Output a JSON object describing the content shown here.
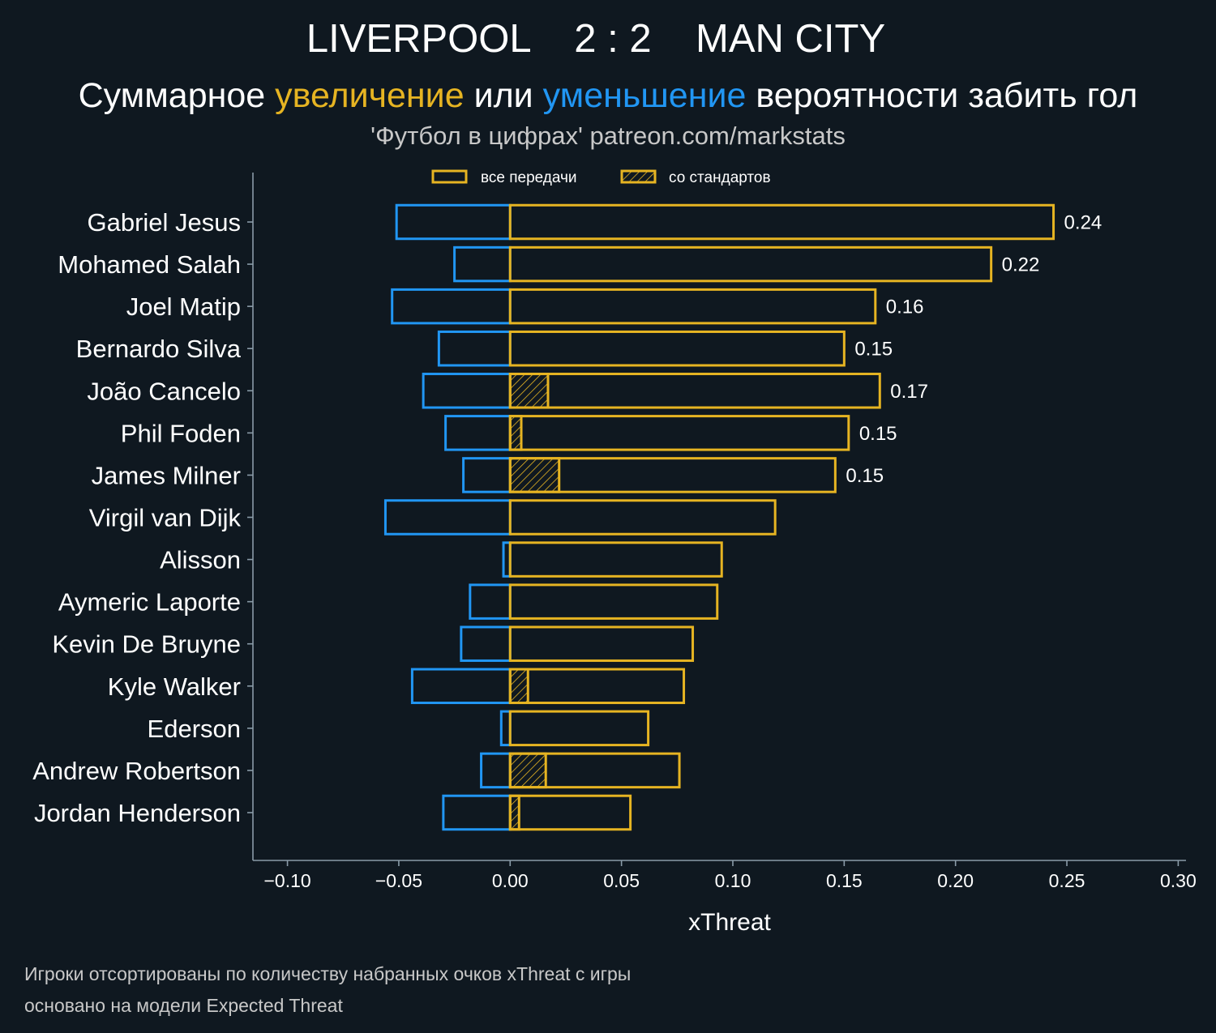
{
  "colors": {
    "background": "#0f1820",
    "text": "#ffffff",
    "muted_text": "#c8c8c8",
    "axis": "#8a9ba8",
    "increase": "#e6b422",
    "decrease": "#2196f3"
  },
  "chart_data": {
    "type": "bar",
    "orientation": "horizontal",
    "title": "LIVERPOOL    2 : 2    MAN CITY",
    "subtitle": [
      {
        "text": "Суммарное "
      },
      {
        "text": "увеличение",
        "color": "#e6b422"
      },
      {
        "text": " или "
      },
      {
        "text": "уменьшение",
        "color": "#2196f3"
      },
      {
        "text": " вероятности забить гол"
      }
    ],
    "credit": "'Футбол в цифрах' patreon.com/markstats",
    "xlabel": "xThreat",
    "xlim": [
      -0.1155,
      0.3035
    ],
    "xticks": [
      -0.1,
      -0.05,
      0.0,
      0.05,
      0.1,
      0.15,
      0.2,
      0.25,
      0.3
    ],
    "xtick_labels": [
      "−0.10",
      "−0.05",
      "0.00",
      "0.05",
      "0.10",
      "0.15",
      "0.20",
      "0.25",
      "0.30"
    ],
    "grid": false,
    "legend": {
      "placement": "top-center",
      "entries": [
        {
          "label": "все передачи"
        },
        {
          "label": "со стандартов"
        }
      ]
    },
    "categories": [
      "Gabriel Jesus",
      "Mohamed Salah",
      "Joel Matip",
      "Bernardo Silva",
      "João Cancelo",
      "Phil Foden",
      "James Milner",
      "Virgil van Dijk",
      "Alisson",
      "Aymeric Laporte",
      "Kevin De Bruyne",
      "Kyle Walker",
      "Ederson",
      "Andrew Robertson",
      "Jordan Henderson"
    ],
    "series": [
      {
        "color": "#2196f3",
        "values": [
          -0.051,
          -0.025,
          -0.053,
          -0.032,
          -0.039,
          -0.029,
          -0.021,
          -0.056,
          -0.003,
          -0.018,
          -0.022,
          -0.044,
          -0.004,
          -0.013,
          -0.03
        ]
      },
      {
        "name": "все передачи",
        "color": "#e6b422",
        "values": [
          0.244,
          0.216,
          0.164,
          0.15,
          0.166,
          0.152,
          0.146,
          0.119,
          0.095,
          0.093,
          0.082,
          0.078,
          0.062,
          0.076,
          0.054
        ]
      },
      {
        "name": "со стандартов",
        "color": "#e6b422",
        "hatched": true,
        "values": [
          0,
          0,
          0,
          0,
          0.017,
          0.005,
          0.022,
          0,
          0,
          0,
          0,
          0.008,
          0,
          0.016,
          0.004
        ]
      }
    ],
    "data_labels": [
      "0.24",
      "0.22",
      "0.16",
      "0.15",
      "0.17",
      "0.15",
      "0.15",
      null,
      null,
      null,
      null,
      null,
      null,
      null,
      null
    ],
    "notes": [
      "Игроки отсортированы по количеству набранных очков xThreat с игры",
      "основано на модели Expected Threat"
    ]
  }
}
